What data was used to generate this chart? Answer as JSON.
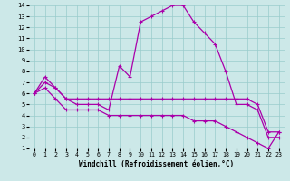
{
  "xlabel": "Windchill (Refroidissement éolien,°C)",
  "bg_color": "#cce8e8",
  "line_color": "#aa00aa",
  "grid_color": "#99cccc",
  "xlim": [
    -0.5,
    23.5
  ],
  "ylim": [
    1,
    14
  ],
  "xticks": [
    0,
    1,
    2,
    3,
    4,
    5,
    6,
    7,
    8,
    9,
    10,
    11,
    12,
    13,
    14,
    15,
    16,
    17,
    18,
    19,
    20,
    21,
    22,
    23
  ],
  "yticks": [
    1,
    2,
    3,
    4,
    5,
    6,
    7,
    8,
    9,
    10,
    11,
    12,
    13,
    14
  ],
  "series": [
    {
      "x": [
        0,
        1,
        2,
        3,
        4,
        5,
        6,
        7,
        8,
        9,
        10,
        11,
        12,
        13,
        14,
        15,
        16,
        17,
        18,
        19,
        20,
        21,
        22,
        23
      ],
      "y": [
        6,
        7.5,
        6.5,
        5.5,
        5.0,
        5.0,
        5.0,
        4.5,
        8.5,
        7.5,
        12.5,
        13.0,
        13.5,
        14.0,
        14.0,
        12.5,
        11.5,
        10.5,
        8.0,
        5.0,
        5.0,
        4.5,
        2.0,
        2.0
      ]
    },
    {
      "x": [
        0,
        1,
        2,
        3,
        4,
        5,
        6,
        7,
        8,
        9,
        10,
        11,
        12,
        13,
        14,
        15,
        16,
        17,
        18,
        19,
        20,
        21,
        22,
        23
      ],
      "y": [
        6.0,
        7.0,
        6.5,
        5.5,
        5.5,
        5.5,
        5.5,
        5.5,
        5.5,
        5.5,
        5.5,
        5.5,
        5.5,
        5.5,
        5.5,
        5.5,
        5.5,
        5.5,
        5.5,
        5.5,
        5.5,
        5.0,
        2.5,
        2.5
      ]
    },
    {
      "x": [
        0,
        1,
        2,
        3,
        4,
        5,
        6,
        7,
        8,
        9,
        10,
        11,
        12,
        13,
        14,
        15,
        16,
        17,
        18,
        19,
        20,
        21,
        22,
        23
      ],
      "y": [
        6.0,
        6.5,
        5.5,
        4.5,
        4.5,
        4.5,
        4.5,
        4.0,
        4.0,
        4.0,
        4.0,
        4.0,
        4.0,
        4.0,
        4.0,
        3.5,
        3.5,
        3.5,
        3.0,
        2.5,
        2.0,
        1.5,
        1.0,
        2.5
      ]
    }
  ]
}
